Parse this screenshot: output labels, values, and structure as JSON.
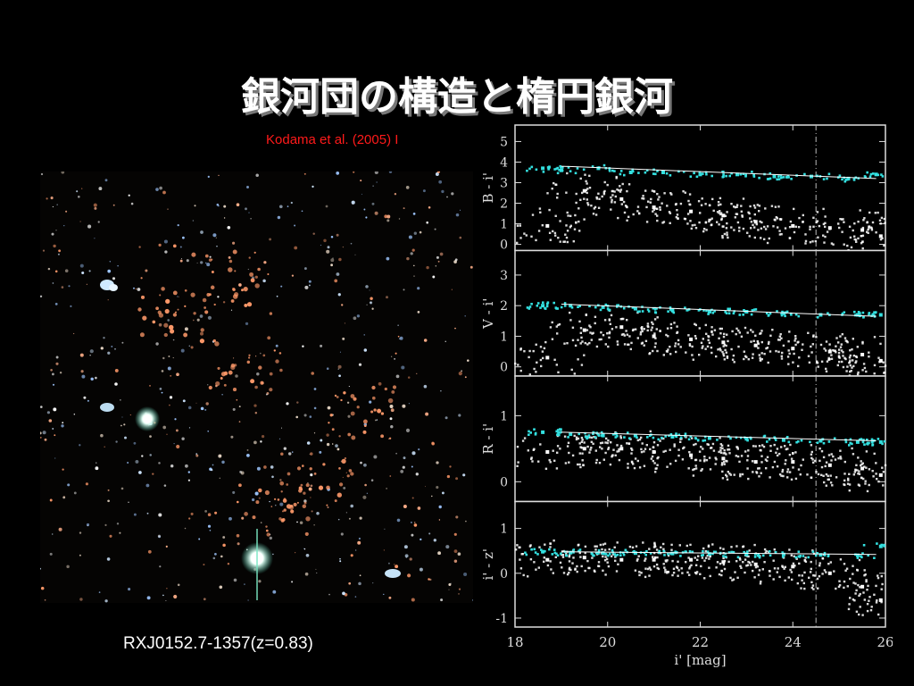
{
  "slide": {
    "title": "銀河団の構造と楕円銀河",
    "citation": "Kodama et al. (2005) I",
    "image_caption": "RXJ0152.7-1357(z=0.83)",
    "colors": {
      "background": "#000000",
      "citation": "#ff1a1a",
      "red_sequence": "#33e0e0",
      "points": "#ffffff"
    }
  },
  "chart_data": {
    "type": "scatter",
    "xlabel": "i' [mag]",
    "xlim": [
      18,
      26
    ],
    "x_ticks": [
      "18",
      "20",
      "22",
      "24",
      "26"
    ],
    "limit_line_x": 24.5,
    "panels": [
      {
        "ylabel": "B - i'",
        "ylim": [
          -0.3,
          5.8
        ],
        "y_ticks": [
          "0",
          "1",
          "2",
          "3",
          "4",
          "5"
        ],
        "red_sequence_fit": {
          "x": [
            19.0,
            25.8
          ],
          "y": [
            3.8,
            3.2
          ]
        },
        "series": [
          {
            "values": [
              [
                18.6,
                3.7
              ],
              [
                19.0,
                3.6
              ],
              [
                19.8,
                3.7
              ],
              [
                20.5,
                3.5
              ],
              [
                21.2,
                3.5
              ],
              [
                22.0,
                3.4
              ],
              [
                22.8,
                3.4
              ],
              [
                23.6,
                3.3
              ],
              [
                24.4,
                3.3
              ],
              [
                25.2,
                3.2
              ],
              [
                25.8,
                3.4
              ]
            ]
          },
          {
            "values": [
              [
                18.7,
                0.9
              ],
              [
                19.5,
                2.6
              ],
              [
                20.3,
                2.2
              ],
              [
                21.0,
                1.8
              ],
              [
                21.8,
                1.6
              ],
              [
                22.5,
                1.4
              ],
              [
                23.2,
                1.1
              ],
              [
                24.0,
                0.9
              ],
              [
                24.8,
                0.8
              ],
              [
                25.5,
                0.7
              ],
              [
                25.9,
                0.4
              ]
            ]
          }
        ]
      },
      {
        "ylabel": "V - i'",
        "ylim": [
          -0.3,
          3.8
        ],
        "y_ticks": [
          "0",
          "1",
          "2",
          "3"
        ],
        "red_sequence_fit": {
          "x": [
            19.0,
            25.8
          ],
          "y": [
            2.05,
            1.65
          ]
        },
        "series": [
          {
            "values": [
              [
                18.6,
                2.0
              ],
              [
                19.2,
                2.0
              ],
              [
                19.9,
                1.95
              ],
              [
                20.6,
                1.9
              ],
              [
                21.4,
                1.85
              ],
              [
                22.2,
                1.8
              ],
              [
                23.0,
                1.8
              ],
              [
                23.8,
                1.75
              ],
              [
                24.6,
                1.7
              ],
              [
                25.4,
                1.7
              ],
              [
                25.9,
                1.7
              ]
            ]
          },
          {
            "values": [
              [
                18.7,
                0.3
              ],
              [
                19.5,
                1.2
              ],
              [
                20.3,
                1.3
              ],
              [
                21.0,
                1.0
              ],
              [
                21.8,
                0.9
              ],
              [
                22.5,
                0.8
              ],
              [
                23.2,
                0.7
              ],
              [
                24.0,
                0.6
              ],
              [
                24.8,
                0.5
              ],
              [
                25.5,
                0.4
              ],
              [
                25.9,
                0.2
              ]
            ]
          }
        ]
      },
      {
        "ylabel": "R - i'",
        "ylim": [
          -0.3,
          1.6
        ],
        "y_ticks": [
          "0",
          "1"
        ],
        "red_sequence_fit": {
          "x": [
            19.0,
            25.8
          ],
          "y": [
            0.75,
            0.62
          ]
        },
        "series": [
          {
            "values": [
              [
                18.6,
                0.75
              ],
              [
                19.2,
                0.72
              ],
              [
                19.9,
                0.7
              ],
              [
                20.6,
                0.7
              ],
              [
                21.4,
                0.68
              ],
              [
                22.2,
                0.66
              ],
              [
                23.0,
                0.65
              ],
              [
                23.8,
                0.63
              ],
              [
                24.6,
                0.62
              ],
              [
                25.4,
                0.6
              ],
              [
                25.9,
                0.6
              ]
            ]
          },
          {
            "values": [
              [
                18.7,
                0.45
              ],
              [
                19.5,
                0.5
              ],
              [
                20.3,
                0.5
              ],
              [
                21.0,
                0.45
              ],
              [
                21.8,
                0.4
              ],
              [
                22.5,
                0.35
              ],
              [
                23.2,
                0.3
              ],
              [
                24.0,
                0.3
              ],
              [
                24.8,
                0.25
              ],
              [
                25.5,
                0.2
              ],
              [
                25.9,
                0.1
              ]
            ]
          }
        ]
      },
      {
        "ylabel": "i' - z'",
        "ylim": [
          -1.2,
          1.6
        ],
        "y_ticks": [
          "-1",
          "0",
          "1"
        ],
        "red_sequence_fit": {
          "x": [
            19.0,
            25.8
          ],
          "y": [
            0.48,
            0.42
          ]
        },
        "series": [
          {
            "values": [
              [
                18.6,
                0.48
              ],
              [
                19.2,
                0.46
              ],
              [
                19.9,
                0.45
              ],
              [
                20.6,
                0.45
              ],
              [
                21.4,
                0.44
              ],
              [
                22.2,
                0.43
              ],
              [
                23.0,
                0.42
              ],
              [
                23.8,
                0.42
              ],
              [
                24.6,
                0.41
              ],
              [
                25.4,
                0.4
              ],
              [
                25.9,
                0.6
              ]
            ]
          },
          {
            "values": [
              [
                18.7,
                0.3
              ],
              [
                19.5,
                0.35
              ],
              [
                20.3,
                0.3
              ],
              [
                21.0,
                0.3
              ],
              [
                21.8,
                0.3
              ],
              [
                22.5,
                0.25
              ],
              [
                23.2,
                0.2
              ],
              [
                24.0,
                0.15
              ],
              [
                24.8,
                0.0
              ],
              [
                25.5,
                -0.3
              ],
              [
                25.9,
                -0.6
              ]
            ]
          }
        ]
      }
    ]
  }
}
